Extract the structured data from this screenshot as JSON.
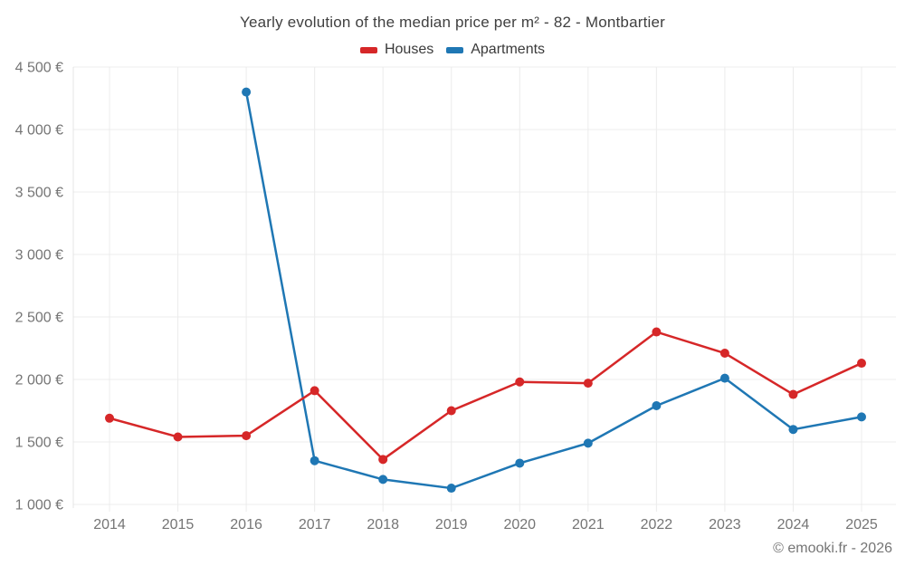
{
  "header": {
    "title": "Yearly evolution of the median price per m² - 82 - Montbartier"
  },
  "legend": {
    "items": [
      {
        "label": "Houses",
        "color": "#d62728"
      },
      {
        "label": "Apartments",
        "color": "#1f77b4"
      }
    ]
  },
  "footer": {
    "credit": "© emooki.fr - 2026"
  },
  "colors": {
    "houses": "#d62728",
    "apartments": "#1f77b4",
    "gridline": "#ececec",
    "axis_line": "#e4e4e4",
    "tick_label": "#757575",
    "title_text": "#404040"
  },
  "chart_data": {
    "type": "line",
    "title": "Yearly evolution of the median price per m² - 82 - Montbartier",
    "categories": [
      "2014",
      "2015",
      "2016",
      "2017",
      "2018",
      "2019",
      "2020",
      "2021",
      "2022",
      "2023",
      "2024",
      "2025"
    ],
    "series": [
      {
        "name": "Houses",
        "color": "#d62728",
        "values": [
          1690,
          1540,
          1550,
          1910,
          1360,
          1750,
          1980,
          1970,
          2380,
          2210,
          1880,
          2130
        ]
      },
      {
        "name": "Apartments",
        "color": "#1f77b4",
        "values": [
          null,
          null,
          4300,
          1350,
          1200,
          1130,
          1330,
          1490,
          1790,
          2010,
          1600,
          1700
        ]
      }
    ],
    "xlabel": "",
    "ylabel": "",
    "unit": "€",
    "ylim": [
      1000,
      4500
    ],
    "ytick_step": 500,
    "ytick_labels": [
      "1 000 €",
      "1 500 €",
      "2 000 €",
      "2 500 €",
      "3 000 €",
      "3 500 €",
      "4 000 €",
      "4 500 €"
    ],
    "grid": true,
    "legend_position": "top"
  }
}
